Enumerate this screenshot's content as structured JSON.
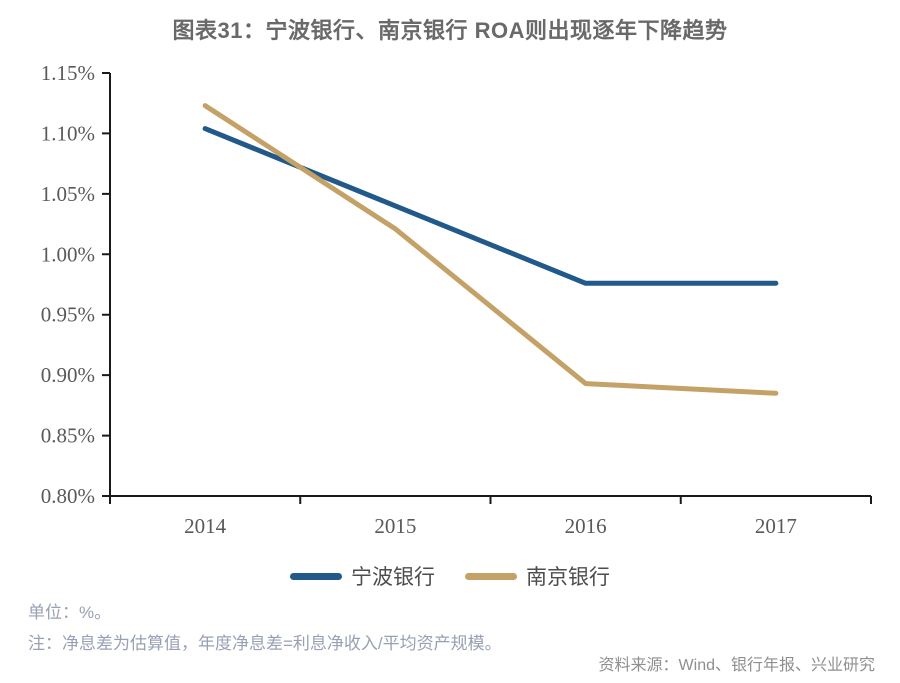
{
  "title": "图表31：宁波银行、南京银行 ROA则出现逐年下降趋势",
  "notes": {
    "unit": "单位：%。",
    "note": "注：净息差为估算值，年度净息差=利息净收入/平均资产规模。",
    "source": "资料来源：Wind、银行年报、兴业研究"
  },
  "colors": {
    "ningbo_line": "#20598a",
    "nanjing_line": "#c4a167",
    "axis": "#1a1a1a",
    "tick_label": "#595959",
    "title_text": "#696969",
    "note_text": "#98a0b4",
    "source_text": "#8f8f8f"
  },
  "chart_data": {
    "type": "line",
    "categories": [
      "2014",
      "2015",
      "2016",
      "2017"
    ],
    "series": [
      {
        "name": "宁波银行",
        "color": "#20598a",
        "values": [
          1.104,
          1.04,
          0.976,
          0.976
        ]
      },
      {
        "name": "南京银行",
        "color": "#c4a167",
        "values": [
          1.123,
          1.021,
          0.893,
          0.885
        ]
      }
    ],
    "ylim": [
      0.8,
      1.15
    ],
    "ytick_step": 0.05,
    "ytick_format": "0.00%",
    "xlabel": "",
    "ylabel": "",
    "grid": false,
    "legend_position": "bottom"
  }
}
